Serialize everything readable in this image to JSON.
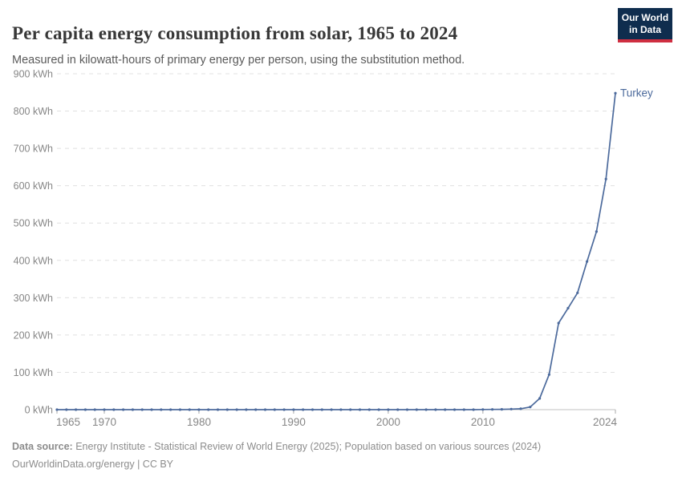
{
  "header": {
    "title": "Per capita energy consumption from solar, 1965 to 2024",
    "subtitle": "Measured in kilowatt-hours of primary energy per person, using the substitution method.",
    "logo_line1": "Our World",
    "logo_line2": "in Data"
  },
  "footer": {
    "datasource_label": "Data source:",
    "datasource_text": " Energy Institute - Statistical Review of World Energy (2025); Population based on various sources (2024)",
    "link_line": "OurWorldinData.org/energy | CC BY"
  },
  "colors": {
    "series_blue": "#4c6a9c",
    "gridline": "#e0e0e0",
    "zero_line": "#c0c0c0",
    "tick_mark": "#a8a8a8",
    "axis_text": "#868686",
    "logo_navy": "#0f2d4e",
    "logo_red": "#cf2e41"
  },
  "chart_data": {
    "type": "line",
    "title": "Per capita energy consumption from solar, 1965 to 2024",
    "subtitle": "Measured in kilowatt-hours of primary energy per person, using the substitution method.",
    "unit": "kWh",
    "xlabel": "",
    "ylabel": "",
    "xlim": [
      1965,
      2024
    ],
    "ylim": [
      0,
      900
    ],
    "xticks": [
      1965,
      1970,
      1980,
      1990,
      2000,
      2010,
      2024
    ],
    "yticks": [
      0,
      100,
      200,
      300,
      400,
      500,
      600,
      700,
      800,
      900
    ],
    "grid": "horizontal-dashed",
    "legend_position": "end-of-line-label",
    "end_label": "Turkey",
    "series": [
      {
        "name": "Turkey",
        "color": "#4c6a9c",
        "x": [
          1965,
          1966,
          1967,
          1968,
          1969,
          1970,
          1971,
          1972,
          1973,
          1974,
          1975,
          1976,
          1977,
          1978,
          1979,
          1980,
          1981,
          1982,
          1983,
          1984,
          1985,
          1986,
          1987,
          1988,
          1989,
          1990,
          1991,
          1992,
          1993,
          1994,
          1995,
          1996,
          1997,
          1998,
          1999,
          2000,
          2001,
          2002,
          2003,
          2004,
          2005,
          2006,
          2007,
          2008,
          2009,
          2010,
          2011,
          2012,
          2013,
          2014,
          2015,
          2016,
          2017,
          2018,
          2019,
          2020,
          2021,
          2022,
          2023,
          2024
        ],
        "values": [
          0,
          0,
          0,
          0,
          0,
          0,
          0,
          0,
          0,
          0,
          0,
          0,
          0,
          0,
          0,
          0,
          0,
          0,
          0,
          0,
          0,
          0,
          0,
          0,
          0,
          0,
          0,
          0,
          0,
          0,
          0,
          0,
          0,
          0,
          0,
          0,
          0,
          0,
          0,
          0,
          0,
          0,
          0,
          0,
          0,
          0.4,
          0.6,
          0.9,
          1.4,
          2.4,
          7,
          30,
          94,
          232,
          272,
          313,
          397,
          477,
          618,
          848
        ]
      }
    ]
  }
}
